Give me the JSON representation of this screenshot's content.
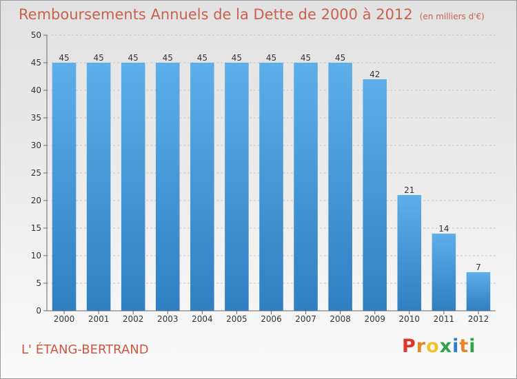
{
  "header": {
    "title": "Remboursements Annuels de la Dette de 2000 à 2012",
    "unit": "(en milliers d'€)"
  },
  "footer": {
    "commune": "L' ÉTANG-BERTRAND",
    "logo": "Proxiti"
  },
  "colors": {
    "title": "#c8624f",
    "bar_light": "#5eaeea",
    "bar_dark": "#2f7fc2",
    "logo_letters": [
      "#e0352b",
      "#e8842a",
      "#f2c32c",
      "#2fa44a",
      "#2f7fc2",
      "#e8842a",
      "#2fa44a"
    ]
  },
  "chart_data": {
    "type": "bar",
    "categories": [
      "2000",
      "2001",
      "2002",
      "2003",
      "2004",
      "2005",
      "2006",
      "2007",
      "2008",
      "2009",
      "2010",
      "2011",
      "2012"
    ],
    "values": [
      45,
      45,
      45,
      45,
      45,
      45,
      45,
      45,
      45,
      42,
      21,
      14,
      7
    ],
    "ylim": [
      0,
      50
    ],
    "yticks": [
      0,
      5,
      10,
      15,
      20,
      25,
      30,
      35,
      40,
      45,
      50
    ],
    "grid": true,
    "data_labels": true
  }
}
